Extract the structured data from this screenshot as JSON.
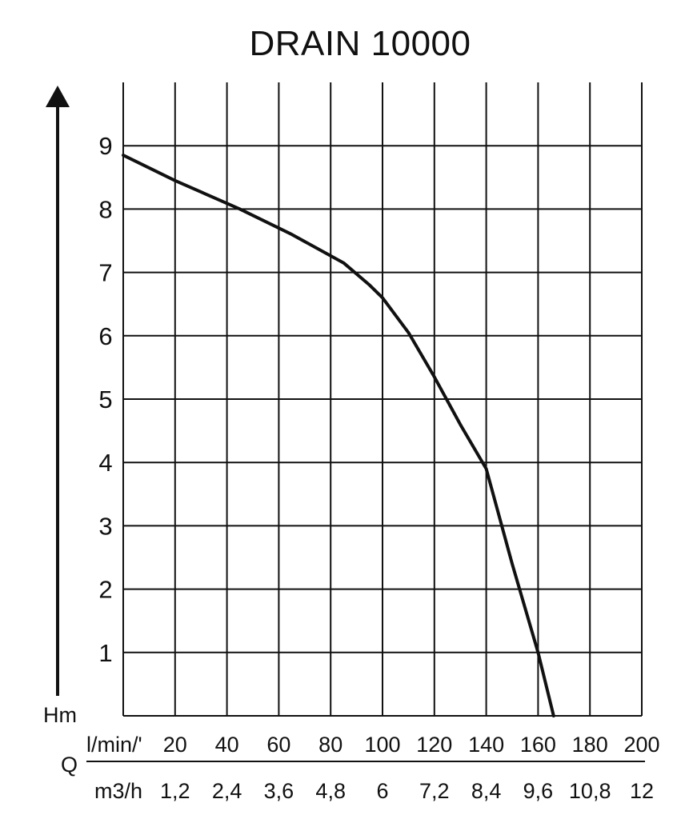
{
  "chart_data": {
    "type": "line",
    "title": "DRAIN 10000",
    "ylabel": "Hm",
    "xlabel": "Q",
    "ylim": [
      0,
      10
    ],
    "xlim": [
      0,
      200
    ],
    "y_ticks": [
      "1",
      "2",
      "3",
      "4",
      "5",
      "6",
      "7",
      "8",
      "9"
    ],
    "x_axes": [
      {
        "unit": "l/min/'",
        "ticks": [
          "20",
          "40",
          "60",
          "80",
          "100",
          "120",
          "140",
          "160",
          "180",
          "200"
        ]
      },
      {
        "unit": "m3/h",
        "ticks": [
          "1,2",
          "2,4",
          "3,6",
          "4,8",
          "6",
          "7,2",
          "8,4",
          "9,6",
          "10,8",
          "12"
        ]
      }
    ],
    "grid": true,
    "series": [
      {
        "x": [
          0,
          20,
          45,
          65,
          85,
          95,
          100,
          110,
          120,
          130,
          140,
          150,
          160,
          166
        ],
        "y": [
          8.85,
          8.45,
          8.0,
          7.6,
          7.15,
          6.8,
          6.6,
          6.05,
          5.35,
          4.6,
          3.9,
          2.4,
          1.0,
          0.0
        ]
      }
    ]
  },
  "colors": {
    "line": "#111111",
    "grid": "#111111",
    "background": "#ffffff"
  }
}
